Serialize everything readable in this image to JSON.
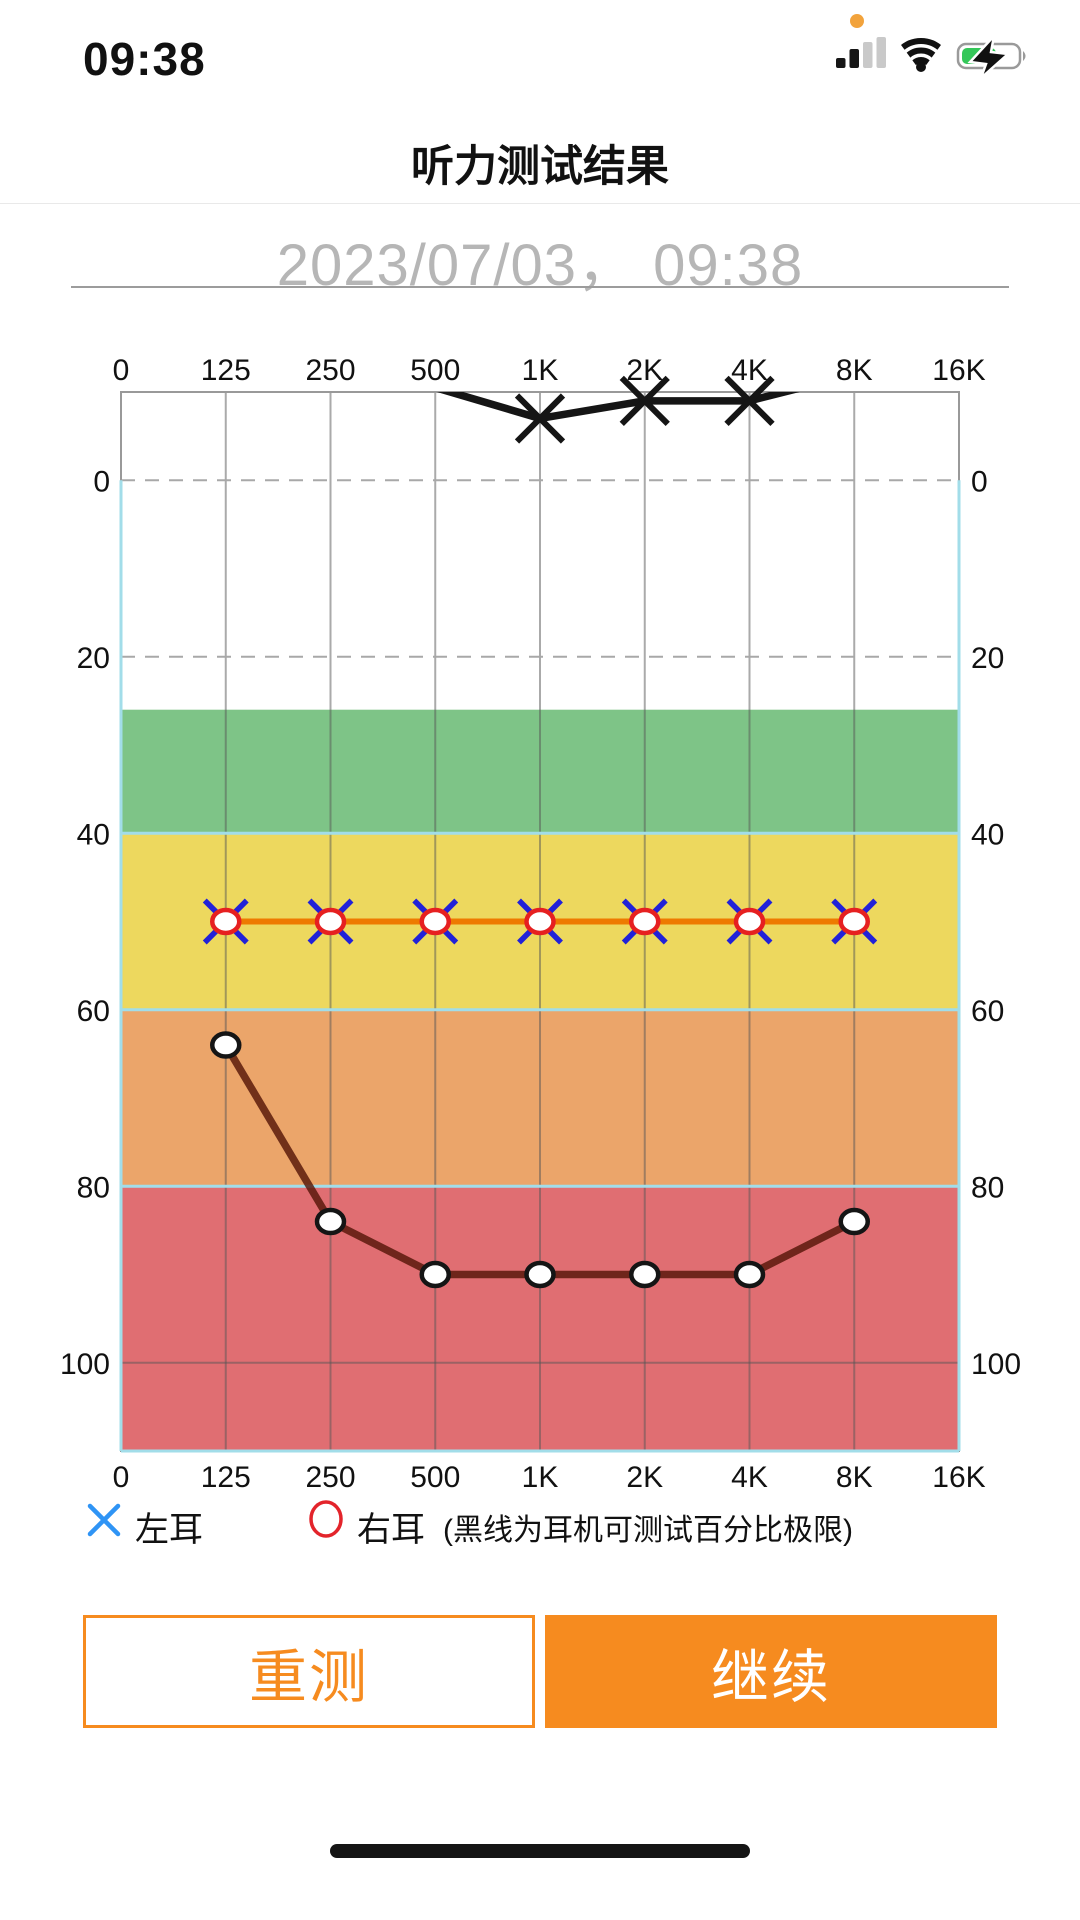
{
  "status_bar": {
    "time": "09:38",
    "recording_dot_color": "#f2a33c",
    "signal_bars": {
      "total": 4,
      "active": 2,
      "active_color": "#161616",
      "inactive_color": "#c9c9c9"
    },
    "battery": {
      "charging": true,
      "fill_color": "#34c759"
    }
  },
  "header": {
    "title": "听力测试结果",
    "date": "2023/07/03， 09:38"
  },
  "chart_data": {
    "type": "line",
    "title": "听力测试结果",
    "x_categories": [
      "0",
      "125",
      "250",
      "500",
      "1K",
      "2K",
      "4K",
      "8K",
      "16K"
    ],
    "y_ticks": [
      0,
      20,
      40,
      60,
      80,
      100
    ],
    "y_range": [
      -10,
      110
    ],
    "y_unit": "dB",
    "dashed_gridlines_db": [
      0,
      20
    ],
    "solid_gridlines_db": [
      100
    ],
    "grid_on": true,
    "zone_boundary_color": "#a2dde9",
    "zones": [
      {
        "name": "green-zone",
        "from_db": 26,
        "to_db": 40,
        "color": "#7ec487"
      },
      {
        "name": "yellow-zone",
        "from_db": 40,
        "to_db": 60,
        "color": "#edd85e"
      },
      {
        "name": "orange-zone",
        "from_db": 60,
        "to_db": 80,
        "color": "#eba56a"
      },
      {
        "name": "red-zone",
        "from_db": 80,
        "to_db": 110,
        "color": "#e06e72"
      }
    ],
    "series": [
      {
        "name": "headphone-limit-upper",
        "symbol": "X",
        "symbol_color": "#151515",
        "line_color": "#151515",
        "line_opacity": 1,
        "clip_line": true,
        "x": [
          "500",
          "1K",
          "2K",
          "4K",
          "8K"
        ],
        "values_db": [
          -10.5,
          -7,
          -9,
          -9,
          -12
        ],
        "marker_at": [
          "1K",
          "2K",
          "4K"
        ]
      },
      {
        "name": "left-ear",
        "legend": "左耳",
        "symbol": "X",
        "symbol_color": "#2121d8",
        "line_color": "#ee7a00",
        "line_opacity": 1,
        "x": [
          "125",
          "250",
          "500",
          "1K",
          "2K",
          "4K",
          "8K"
        ],
        "values_db": [
          50,
          50,
          50,
          50,
          50,
          50,
          50
        ]
      },
      {
        "name": "right-ear",
        "legend": "右耳",
        "symbol": "O",
        "symbol_color": "#e62020",
        "line_color": "#ee7a00",
        "line_opacity": 1,
        "x": [
          "125",
          "250",
          "500",
          "1K",
          "2K",
          "4K",
          "8K"
        ],
        "values_db": [
          50,
          50,
          50,
          50,
          50,
          50,
          50
        ]
      },
      {
        "name": "headphone-limit-lower",
        "symbol": "O",
        "symbol_color": "#151515",
        "line_color": "#521305",
        "line_opacity": 0.8,
        "x": [
          "125",
          "250",
          "500",
          "1K",
          "2K",
          "4K",
          "8K"
        ],
        "values_db": [
          64,
          84,
          90,
          90,
          90,
          90,
          84
        ]
      }
    ]
  },
  "legend": {
    "left_ear_label": "左耳",
    "left_ear_icon_color": "#2f94f5",
    "right_ear_label": "右耳",
    "right_ear_icon_color": "#e3242b",
    "note": "(黑线为耳机可测试百分比极限)"
  },
  "buttons": {
    "retest": "重测",
    "continue": "继续",
    "accent_color": "#f68b1f"
  }
}
